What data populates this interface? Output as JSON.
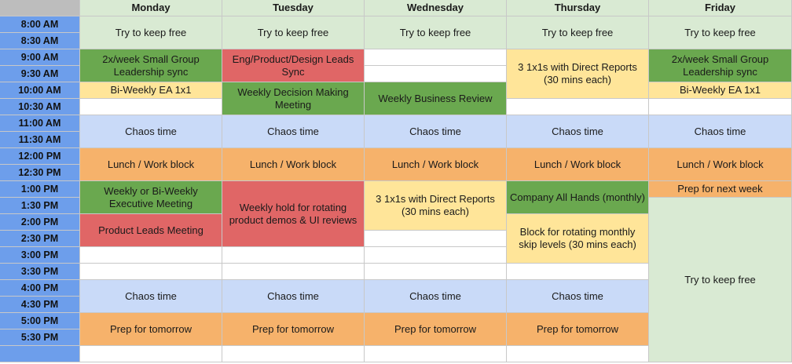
{
  "days": [
    "Monday",
    "Tuesday",
    "Wednesday",
    "Thursday",
    "Friday"
  ],
  "times": [
    "8:00 AM",
    "8:30 AM",
    "9:00 AM",
    "9:30 AM",
    "10:00 AM",
    "10:30 AM",
    "11:00 AM",
    "11:30 AM",
    "12:00 PM",
    "12:30 PM",
    "1:00 PM",
    "1:30 PM",
    "2:00 PM",
    "2:30 PM",
    "3:00 PM",
    "3:30 PM",
    "4:00 PM",
    "4:30 PM",
    "5:00 PM",
    "5:30 PM",
    ""
  ],
  "events": {
    "keep_free": "Try to keep free",
    "small_group_sync": "2x/week Small Group Leadership sync",
    "eng_product_design_sync": "Eng/Product/Design Leads Sync",
    "direct_reports": "3 1x1s with Direct Reports (30 mins each)",
    "ea_1x1": "Bi-Weekly EA 1x1",
    "decision_making": "Weekly Decision Making Meeting",
    "business_review": "Weekly Business Review",
    "chaos_time": "Chaos time",
    "lunch": "Lunch / Work block",
    "executive_meeting": "Weekly or Bi-Weekly Executive Meeting",
    "product_demos": "Weekly hold for rotating product demos & UI reviews",
    "all_hands": "Company All Hands (monthly)",
    "prep_next_week": "Prep for next week",
    "product_leads": "Product Leads Meeting",
    "skip_levels": "Block for rotating monthly skip levels (30 mins each)",
    "prep_tomorrow": "Prep for tomorrow"
  },
  "colors": {
    "header": "#d9ead3",
    "time_column": "#6d9eeb",
    "free": "#d9ead3",
    "meeting_green": "#6aa84f",
    "meeting_red": "#e06666",
    "one_on_ones_yellow": "#ffe599",
    "chaos_blue": "#c9daf8",
    "lunch_prep_orange": "#f6b26b"
  }
}
